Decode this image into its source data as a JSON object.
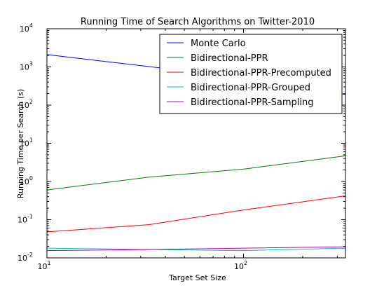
{
  "chart_data": {
    "type": "line",
    "title": "Running Time of Search Algorithms on Twitter-2010",
    "xlabel": "Target Set Size",
    "ylabel": "Running Time per Search (s)",
    "xscale": "log",
    "yscale": "log",
    "xlim": [
      10,
      330
    ],
    "ylim": [
      0.01,
      10000
    ],
    "grid": false,
    "legend_position": "top-right",
    "x_ticks": [
      {
        "value": 10,
        "base": "10",
        "exp": "1"
      },
      {
        "value": 100,
        "base": "10",
        "exp": "2"
      }
    ],
    "y_ticks": [
      {
        "value": 0.01,
        "base": "10",
        "exp": "-2"
      },
      {
        "value": 0.1,
        "base": "10",
        "exp": "-1"
      },
      {
        "value": 1,
        "base": "10",
        "exp": "0"
      },
      {
        "value": 10,
        "base": "10",
        "exp": "1"
      },
      {
        "value": 100,
        "base": "10",
        "exp": "2"
      },
      {
        "value": 1000,
        "base": "10",
        "exp": "3"
      },
      {
        "value": 10000,
        "base": "10",
        "exp": "4"
      }
    ],
    "series": [
      {
        "name": "Monte Carlo",
        "color": "#0000ff",
        "x": [
          10,
          33,
          100,
          330
        ],
        "y": [
          2100,
          1020,
          520,
          190
        ]
      },
      {
        "name": "Bidirectional-PPR",
        "color": "#008000",
        "x": [
          10,
          33,
          100,
          330
        ],
        "y": [
          0.6,
          1.3,
          2.1,
          4.7
        ]
      },
      {
        "name": "Bidirectional-PPR-Precomputed",
        "color": "#ff0000",
        "x": [
          10,
          33,
          100,
          330
        ],
        "y": [
          0.048,
          0.074,
          0.18,
          0.42
        ]
      },
      {
        "name": "Bidirectional-PPR-Grouped",
        "color": "#00bfbf",
        "x": [
          10,
          33,
          100,
          330
        ],
        "y": [
          0.018,
          0.0165,
          0.0155,
          0.018
        ]
      },
      {
        "name": "Bidirectional-PPR-Sampling",
        "color": "#bf00bf",
        "x": [
          10,
          33,
          100,
          330
        ],
        "y": [
          0.0155,
          0.0165,
          0.018,
          0.0195
        ]
      }
    ]
  }
}
